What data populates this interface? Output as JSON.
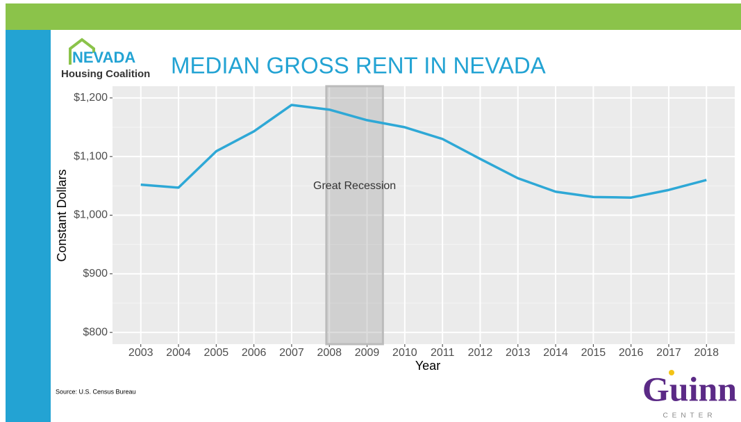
{
  "logo": {
    "name": "NEVADA",
    "subtitle": "Housing Coalition"
  },
  "chart_data": {
    "type": "line",
    "title": "MEDIAN GROSS RENT IN NEVADA",
    "x_label": "Year",
    "y_label": "Constant Dollars",
    "x": [
      2003,
      2004,
      2005,
      2006,
      2007,
      2008,
      2009,
      2010,
      2011,
      2012,
      2013,
      2014,
      2015,
      2016,
      2017,
      2018
    ],
    "series": [
      {
        "name": "Median gross rent",
        "color": "#2ea8d6",
        "values": [
          1052,
          1047,
          1109,
          1143,
          1188,
          1180,
          1162,
          1150,
          1130,
          1096,
          1063,
          1040,
          1031,
          1030,
          1043,
          1060
        ]
      }
    ],
    "xlim": [
      2002.25,
      2018.75
    ],
    "xticks": [
      2003,
      2004,
      2005,
      2006,
      2007,
      2008,
      2009,
      2010,
      2011,
      2012,
      2013,
      2014,
      2015,
      2016,
      2017,
      2018
    ],
    "ylim": [
      780,
      1220
    ],
    "yticks": [
      {
        "value": 800,
        "label": "$800"
      },
      {
        "value": 900,
        "label": "$900"
      },
      {
        "value": 1000,
        "label": "$1,000"
      },
      {
        "value": 1100,
        "label": "$1,100"
      },
      {
        "value": 1200,
        "label": "$1,200"
      }
    ],
    "grid": true,
    "shaded_region": {
      "label": "Great Recession",
      "x": [
        2007.92,
        2009.42
      ]
    }
  },
  "source": "Source: U.S. Census Bureau",
  "brand": {
    "name": "Guinn",
    "subtitle": "CENTER"
  }
}
